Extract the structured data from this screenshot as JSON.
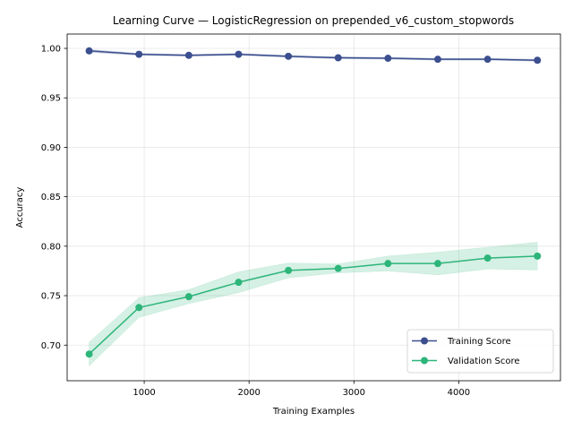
{
  "chart_data": {
    "type": "line",
    "title": "Learning Curve — LogisticRegression on prepended_v6_custom_stopwords",
    "xlabel": "Training Examples",
    "ylabel": "Accuracy",
    "xlim": [
      265,
      4970
    ],
    "ylim": [
      0.664,
      1.0145
    ],
    "xticks": [
      1000,
      2000,
      3000,
      4000
    ],
    "yticks": [
      0.7,
      0.75,
      0.8,
      0.85,
      0.9,
      0.95,
      1.0
    ],
    "xtick_labels": [
      "1000",
      "2000",
      "3000",
      "4000"
    ],
    "ytick_labels": [
      "0.70",
      "0.75",
      "0.80",
      "0.85",
      "0.90",
      "0.95",
      "1.00"
    ],
    "grid": true,
    "legend_position": "lower-right",
    "x": [
      475,
      950,
      1425,
      1900,
      2375,
      2850,
      3325,
      3800,
      4275,
      4750
    ],
    "series": [
      {
        "name": "Training Score",
        "color": "#3b4f8f",
        "values": [
          0.9975,
          0.994,
          0.993,
          0.994,
          0.992,
          0.9905,
          0.99,
          0.989,
          0.989,
          0.988
        ],
        "band_upper": [
          0.999,
          0.995,
          0.994,
          0.995,
          0.993,
          0.9915,
          0.991,
          0.99,
          0.99,
          0.989
        ],
        "band_lower": [
          0.996,
          0.993,
          0.992,
          0.993,
          0.991,
          0.9895,
          0.989,
          0.988,
          0.988,
          0.987
        ]
      },
      {
        "name": "Validation Score",
        "color": "#2db57a",
        "values": [
          0.691,
          0.738,
          0.749,
          0.7635,
          0.7755,
          0.7775,
          0.7825,
          0.7825,
          0.788,
          0.79
        ],
        "band_upper": [
          0.703,
          0.748,
          0.756,
          0.774,
          0.783,
          0.782,
          0.79,
          0.794,
          0.799,
          0.804
        ],
        "band_lower": [
          0.679,
          0.728,
          0.742,
          0.753,
          0.768,
          0.773,
          0.775,
          0.771,
          0.777,
          0.776
        ]
      }
    ]
  }
}
